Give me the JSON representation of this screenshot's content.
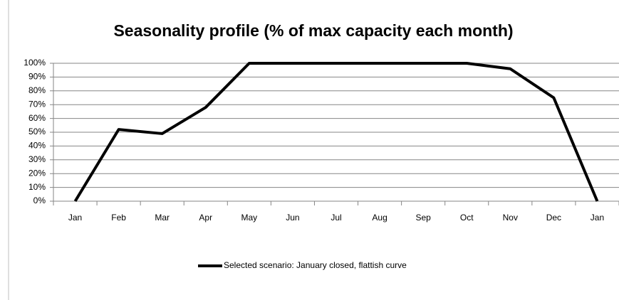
{
  "chart_data": {
    "type": "line",
    "title": "Seasonality profile (% of max capacity each month)",
    "categories": [
      "Jan",
      "Feb",
      "Mar",
      "Apr",
      "May",
      "Jun",
      "Jul",
      "Aug",
      "Sep",
      "Oct",
      "Nov",
      "Dec",
      "Jan"
    ],
    "series": [
      {
        "name": "Selected scenario: January closed, flattish curve",
        "color": "#000000",
        "values": [
          0,
          52,
          49,
          68,
          100,
          100,
          100,
          100,
          100,
          100,
          96,
          75,
          0
        ]
      }
    ],
    "ylim": [
      0,
      100
    ],
    "yticks": [
      {
        "value": 0,
        "label": "0%"
      },
      {
        "value": 10,
        "label": "10%"
      },
      {
        "value": 20,
        "label": "20%"
      },
      {
        "value": 30,
        "label": "30%"
      },
      {
        "value": 40,
        "label": "40%"
      },
      {
        "value": 50,
        "label": "50%"
      },
      {
        "value": 60,
        "label": "60%"
      },
      {
        "value": 70,
        "label": "70%"
      },
      {
        "value": 80,
        "label": "80%"
      },
      {
        "value": 90,
        "label": "90%"
      },
      {
        "value": 100,
        "label": "100%"
      }
    ],
    "grid": true,
    "legend": "bottom"
  }
}
